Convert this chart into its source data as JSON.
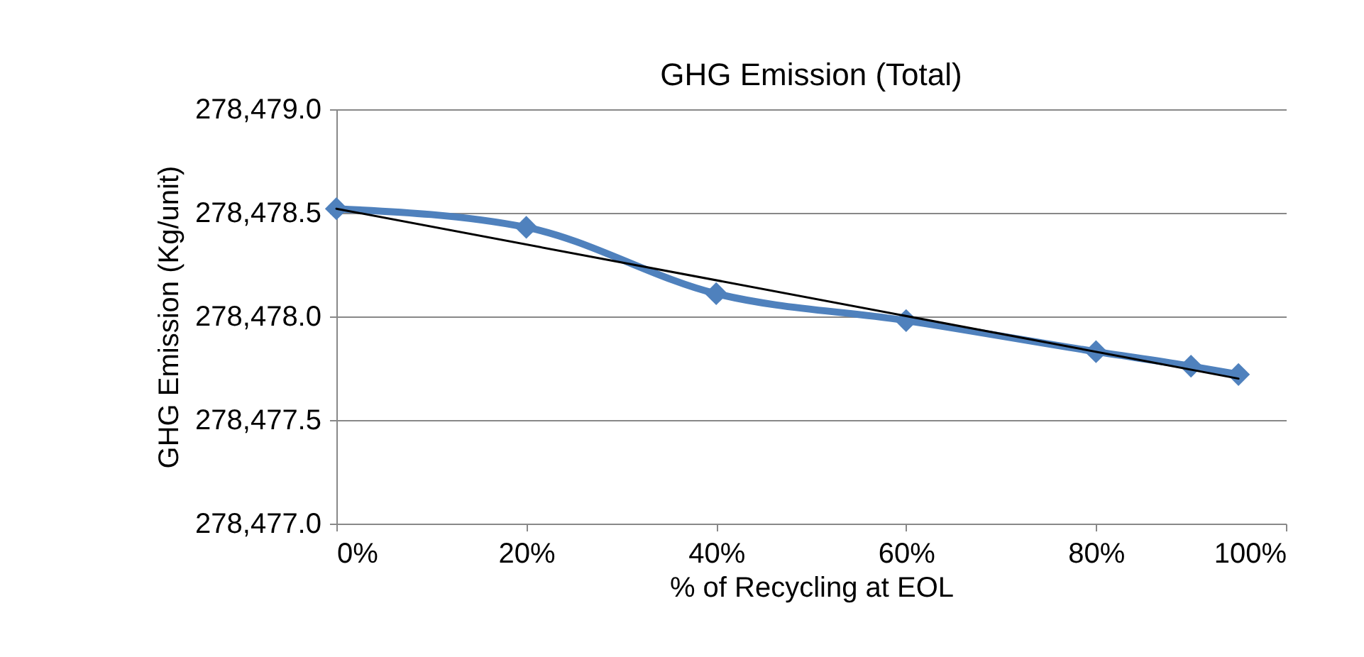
{
  "chart_data": {
    "type": "line",
    "title": "GHG Emission (Total)",
    "xlabel": "% of Recycling at EOL",
    "ylabel": "GHG Emission (Kg/unit)",
    "x": [
      0,
      20,
      40,
      60,
      80,
      90,
      95
    ],
    "series": [
      {
        "color": "#4f81bd",
        "values": [
          278478.52,
          278478.43,
          278478.11,
          278477.98,
          278477.83,
          278477.76,
          278477.72
        ],
        "marker": "diamond"
      },
      {
        "type": "line",
        "color": "#000000",
        "x": [
          0,
          95
        ],
        "values": [
          278478.52,
          278477.7
        ],
        "marker": "none"
      }
    ],
    "xlim": [
      0,
      100
    ],
    "xticks": [
      {
        "value": 0,
        "label": "0%"
      },
      {
        "value": 20,
        "label": "20%"
      },
      {
        "value": 40,
        "label": "40%"
      },
      {
        "value": 60,
        "label": "60%"
      },
      {
        "value": 80,
        "label": "80%"
      },
      {
        "value": 100,
        "label": "100%"
      }
    ],
    "ylim": [
      278477.0,
      278479.0
    ],
    "yticks": [
      {
        "value": 278477.0,
        "label": "278,477.0"
      },
      {
        "value": 278477.5,
        "label": "278,477.5"
      },
      {
        "value": 278478.0,
        "label": "278,478.0"
      },
      {
        "value": 278478.5,
        "label": "278,478.5"
      },
      {
        "value": 278479.0,
        "label": "278,479.0"
      }
    ],
    "grid": "y"
  }
}
